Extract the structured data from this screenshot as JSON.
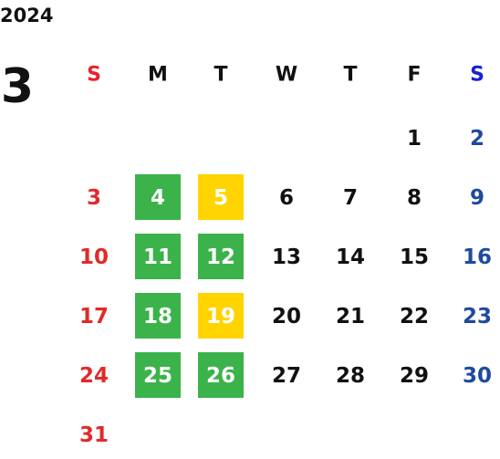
{
  "year": "2024",
  "month": "3",
  "weekdays": [
    {
      "label": "S",
      "color": "#e8232a"
    },
    {
      "label": "M",
      "color": "#111111"
    },
    {
      "label": "T",
      "color": "#111111"
    },
    {
      "label": "W",
      "color": "#111111"
    },
    {
      "label": "T",
      "color": "#111111"
    },
    {
      "label": "F",
      "color": "#111111"
    },
    {
      "label": "S",
      "color": "#1822d4"
    }
  ],
  "day_colors": [
    "#e02a2a",
    "#111111",
    "#111111",
    "#111111",
    "#111111",
    "#111111",
    "#1f4a9c"
  ],
  "weeks": [
    [
      null,
      null,
      null,
      null,
      null,
      1,
      2
    ],
    [
      3,
      4,
      5,
      6,
      7,
      8,
      9
    ],
    [
      10,
      11,
      12,
      13,
      14,
      15,
      16
    ],
    [
      17,
      18,
      19,
      20,
      21,
      22,
      23
    ],
    [
      24,
      25,
      26,
      27,
      28,
      29,
      30
    ],
    [
      31,
      null,
      null,
      null,
      null,
      null,
      null
    ]
  ],
  "highlights": [
    {
      "day": 4,
      "color": "#3bb34a"
    },
    {
      "day": 5,
      "color": "#ffd400"
    },
    {
      "day": 11,
      "color": "#3bb34a"
    },
    {
      "day": 12,
      "color": "#3bb34a"
    },
    {
      "day": 18,
      "color": "#3bb34a"
    },
    {
      "day": 19,
      "color": "#ffd400"
    },
    {
      "day": 25,
      "color": "#3bb34a"
    },
    {
      "day": 26,
      "color": "#3bb34a"
    }
  ]
}
